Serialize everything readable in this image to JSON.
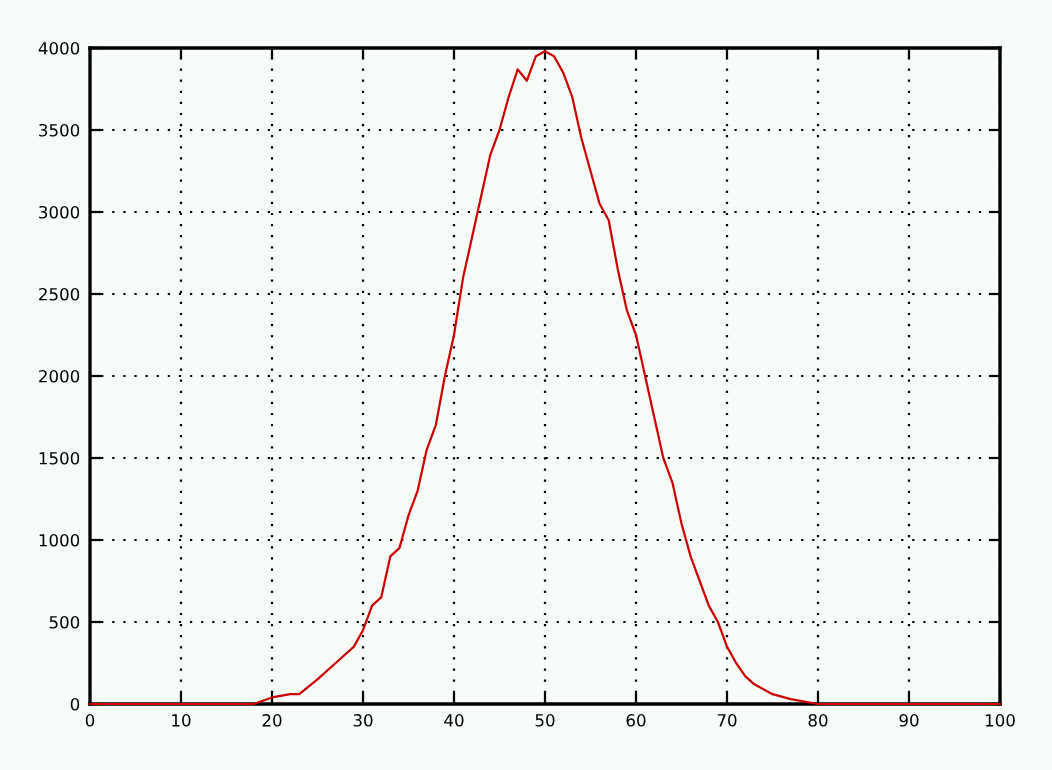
{
  "chart_data": {
    "type": "line",
    "x": [
      0,
      5,
      10,
      15,
      17,
      18,
      20,
      22,
      23,
      25,
      27,
      29,
      30,
      31,
      32,
      33,
      34,
      35,
      36,
      37,
      38,
      39,
      40,
      41,
      42,
      43,
      44,
      45,
      46,
      47,
      48,
      49,
      50,
      51,
      52,
      53,
      54,
      55,
      56,
      57,
      58,
      59,
      60,
      61,
      62,
      63,
      64,
      65,
      66,
      67,
      68,
      69,
      70,
      71,
      72,
      73,
      75,
      77,
      80,
      85,
      90,
      95,
      100
    ],
    "series": [
      {
        "color": "#cc0000",
        "values": [
          0,
          0,
          0,
          0,
          0,
          0,
          40,
          60,
          60,
          150,
          250,
          350,
          450,
          600,
          650,
          900,
          950,
          1150,
          1300,
          1550,
          1700,
          2000,
          2250,
          2600,
          2850,
          3100,
          3350,
          3500,
          3700,
          3870,
          3800,
          3950,
          3980,
          3950,
          3850,
          3700,
          3450,
          3250,
          3050,
          2950,
          2650,
          2400,
          2250,
          2000,
          1750,
          1500,
          1350,
          1100,
          900,
          750,
          600,
          500,
          350,
          250,
          170,
          120,
          60,
          30,
          0,
          0,
          0,
          0,
          0
        ]
      }
    ],
    "xlim": [
      0,
      100
    ],
    "ylim": [
      0,
      4000
    ],
    "xticks": [
      0,
      10,
      20,
      30,
      40,
      50,
      60,
      70,
      80,
      90,
      100
    ],
    "yticks": [
      0,
      500,
      1000,
      1500,
      2000,
      2500,
      3000,
      3500,
      4000
    ],
    "grid": true,
    "line_style": "solid"
  }
}
